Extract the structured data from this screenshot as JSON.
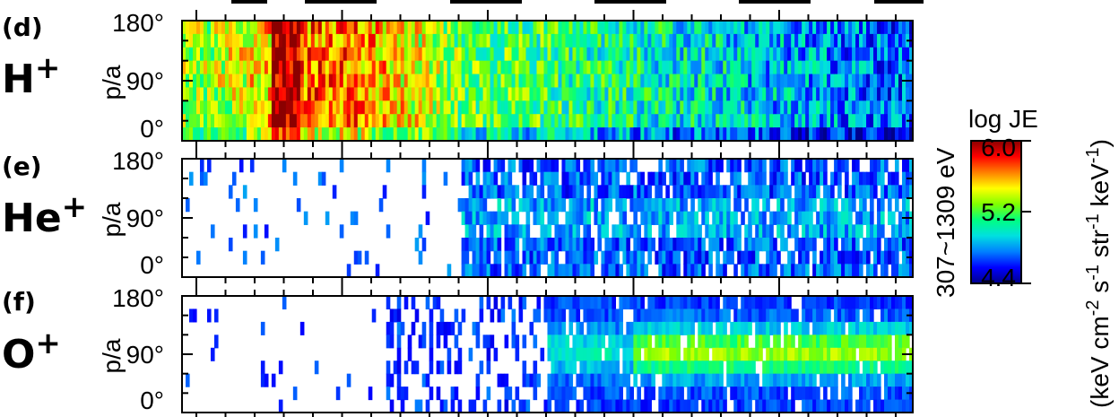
{
  "chart_data": [
    {
      "type": "heatmap",
      "panel_label": "(d)",
      "species_base": "H",
      "species_sup": "+",
      "ylabel": "p/a",
      "yticks": [
        "180°",
        "90°",
        "0°"
      ],
      "ylim": [
        0,
        180
      ],
      "clim": [
        4.4,
        6.0
      ],
      "profile": "hplus"
    },
    {
      "type": "heatmap",
      "panel_label": "(e)",
      "species_base": "He",
      "species_sup": "+",
      "ylabel": "p/a",
      "yticks": [
        "180°",
        "90°",
        "0°"
      ],
      "ylim": [
        0,
        180
      ],
      "clim": [
        4.4,
        6.0
      ],
      "profile": "heplus"
    },
    {
      "type": "heatmap",
      "panel_label": "(f)",
      "species_base": "O",
      "species_sup": "+",
      "ylabel": "p/a",
      "yticks": [
        "180°",
        "90°",
        "0°"
      ],
      "ylim": [
        0,
        180
      ],
      "clim": [
        4.4,
        6.0
      ],
      "profile": "oplus"
    }
  ],
  "energy_range": "307~1309 eV",
  "colorbar": {
    "title": "log JE",
    "ticks": [
      "6.0",
      "5.2",
      "4.4"
    ],
    "units": "(keV cm-2 s-1 str-1 keV-1)",
    "colormap": [
      "#00008b",
      "#0000ff",
      "#0080ff",
      "#00e0e0",
      "#00ff80",
      "#80ff00",
      "#ffff00",
      "#ff8000",
      "#ff0000",
      "#8b0000"
    ]
  }
}
